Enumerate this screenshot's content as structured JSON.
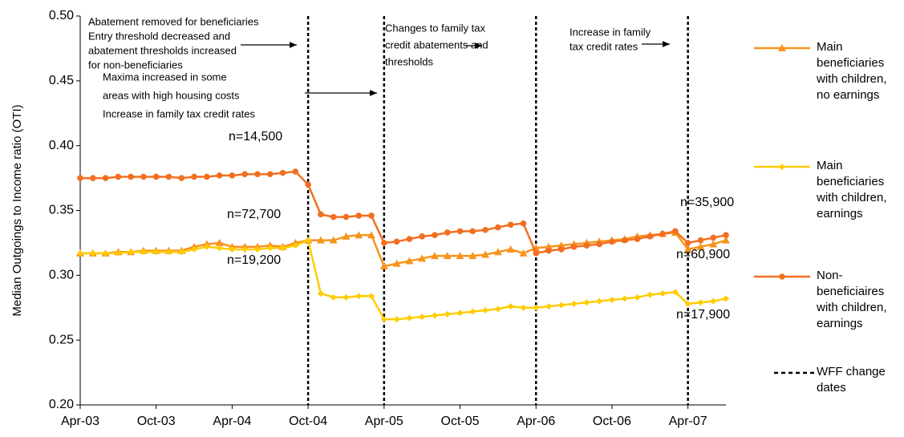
{
  "chart_data": {
    "type": "line",
    "y_label": "Median Outgoings to Income ratio (OTI)",
    "ylim": [
      0.2,
      0.5
    ],
    "yticks": [
      {
        "value": 0.2,
        "label": "0.20"
      },
      0.25,
      {
        "value": 0.3,
        "label": "0.30"
      },
      0.35,
      {
        "value": 0.4,
        "label": "0.40"
      },
      0.45,
      {
        "value": 0.5,
        "label": "0.50"
      }
    ],
    "categories": [
      "Apr-03",
      null,
      null,
      null,
      null,
      null,
      "Oct-03",
      null,
      null,
      null,
      null,
      null,
      "Apr-04",
      null,
      null,
      null,
      null,
      null,
      "Oct-04",
      null,
      null,
      null,
      null,
      null,
      "Apr-05",
      null,
      null,
      null,
      null,
      null,
      "Oct-05",
      null,
      null,
      null,
      null,
      null,
      "Apr-06",
      null,
      null,
      null,
      null,
      null,
      "Oct-06",
      null,
      null,
      null,
      null,
      null,
      "Apr-07",
      null,
      null,
      null
    ],
    "series": [
      {
        "name": "Main beneficiaries with children, no earnings",
        "color": "#f7941d",
        "marker": "triangle",
        "values": [
          0.317,
          0.317,
          0.317,
          0.318,
          0.318,
          0.319,
          0.319,
          0.319,
          0.319,
          0.322,
          0.324,
          0.325,
          0.322,
          0.322,
          0.322,
          0.323,
          0.322,
          0.325,
          0.327,
          0.327,
          0.327,
          0.33,
          0.331,
          0.331,
          0.307,
          0.309,
          0.311,
          0.313,
          0.315,
          0.315,
          0.315,
          0.315,
          0.316,
          0.318,
          0.32,
          0.317,
          0.321,
          0.322,
          0.323,
          0.324,
          0.325,
          0.326,
          0.327,
          0.328,
          0.33,
          0.331,
          0.332,
          0.333,
          0.32,
          0.322,
          0.324,
          0.327
        ]
      },
      {
        "name": "Main beneficiaries with children, earnings",
        "color": "#ffcc00",
        "marker": "diamond",
        "values": [
          0.317,
          0.317,
          0.317,
          0.317,
          0.318,
          0.318,
          0.318,
          0.318,
          0.318,
          0.32,
          0.322,
          0.321,
          0.32,
          0.32,
          0.32,
          0.321,
          0.321,
          0.323,
          0.327,
          0.286,
          0.283,
          0.283,
          0.284,
          0.284,
          0.266,
          0.266,
          0.267,
          0.268,
          0.269,
          0.27,
          0.271,
          0.272,
          0.273,
          0.274,
          0.276,
          0.275,
          0.275,
          0.276,
          0.277,
          0.278,
          0.279,
          0.28,
          0.281,
          0.282,
          0.283,
          0.285,
          0.286,
          0.287,
          0.278,
          0.279,
          0.28,
          0.282
        ]
      },
      {
        "name": "Non-beneficiaires with children, earnings",
        "color": "#f26f21",
        "marker": "circle",
        "values": [
          0.375,
          0.375,
          0.375,
          0.376,
          0.376,
          0.376,
          0.376,
          0.376,
          0.375,
          0.376,
          0.376,
          0.377,
          0.377,
          0.378,
          0.378,
          0.378,
          0.379,
          0.38,
          0.37,
          0.347,
          0.345,
          0.345,
          0.346,
          0.346,
          0.325,
          0.326,
          0.328,
          0.33,
          0.331,
          0.333,
          0.334,
          0.334,
          0.335,
          0.337,
          0.339,
          0.34,
          0.317,
          0.319,
          0.32,
          0.322,
          0.323,
          0.324,
          0.326,
          0.327,
          0.328,
          0.33,
          0.332,
          0.334,
          0.325,
          0.327,
          0.329,
          0.331
        ]
      }
    ],
    "reference_lines": {
      "name": "WFF change dates",
      "at": [
        "Oct-04",
        "Apr-05",
        "Apr-06",
        "Apr-07"
      ]
    },
    "annotations": [
      {
        "lines": [
          "Abatement removed for beneficiaries",
          "Entry threshold decreased and",
          "abatement thresholds increased",
          "for non-beneficiaries"
        ]
      },
      {
        "lines": [
          "Maxima increased in some",
          " areas with high housing costs",
          "Increase in family tax credit rates"
        ]
      },
      {
        "lines": [
          "Changes to family tax",
          "credit abatements and",
          "thresholds"
        ]
      },
      {
        "lines": [
          "Increase in family",
          "tax credit rates"
        ]
      },
      {
        "lines": [
          "n=14,500"
        ]
      },
      {
        "lines": [
          "n=72,700"
        ]
      },
      {
        "lines": [
          "n=19,200"
        ]
      },
      {
        "lines": [
          "n=35,900"
        ]
      },
      {
        "lines": [
          "n=60,900"
        ]
      },
      {
        "lines": [
          "n=17,900"
        ]
      }
    ]
  }
}
